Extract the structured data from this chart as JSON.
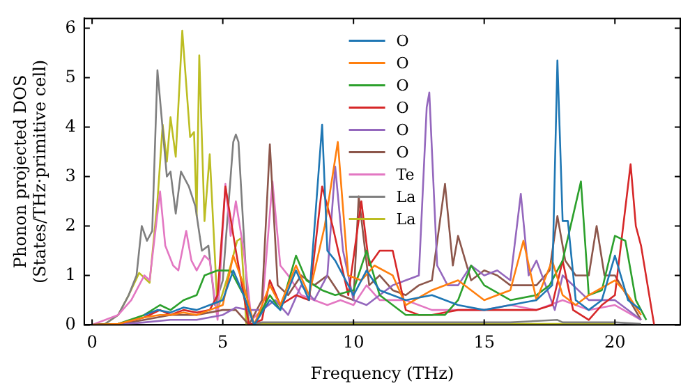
{
  "chart_data": {
    "type": "line",
    "xlabel": "Frequency (THz)",
    "ylabel": "Phonon projected DOS\n(States/THz·primitive cell)",
    "xlim": [
      -0.3,
      22.5
    ],
    "ylim": [
      0,
      6.2
    ],
    "xticks": [
      0,
      5,
      10,
      15,
      20
    ],
    "yticks": [
      0,
      1,
      2,
      3,
      4,
      5,
      6
    ],
    "grid": false,
    "legend": "top center",
    "marker": "none",
    "line_style": "solid",
    "series": [
      {
        "name": "O",
        "color": "#1f77b4",
        "x": [
          2,
          2.5,
          3,
          3.5,
          4,
          4.5,
          5,
          5.4,
          5.8,
          6.2,
          6.8,
          7.2,
          7.8,
          8.3,
          8.8,
          9.0,
          9.3,
          10,
          10.5,
          11,
          12,
          13,
          14,
          15,
          16,
          17,
          17.6,
          17.8,
          18.0,
          18.2,
          18.5,
          19,
          19.5,
          20,
          20.5,
          21
        ],
        "values": [
          0.2,
          0.3,
          0.25,
          0.35,
          0.3,
          0.4,
          0.5,
          1.1,
          0.6,
          0,
          0.5,
          0.3,
          1.1,
          0.5,
          4.05,
          1.5,
          1.3,
          0.6,
          1.1,
          0.7,
          0.5,
          0.6,
          0.4,
          0.3,
          0.4,
          0.5,
          0.8,
          5.35,
          2.1,
          2.1,
          0.5,
          0.3,
          0.5,
          1.4,
          0.5,
          0.3
        ]
      },
      {
        "name": "O",
        "color": "#ff7f0e",
        "x": [
          0,
          1,
          2,
          2.6,
          3,
          3.5,
          4,
          4.5,
          5,
          5.4,
          5.8,
          6.2,
          6.8,
          7.2,
          7.8,
          8.3,
          8.9,
          9.4,
          9.8,
          10.3,
          10.8,
          11.5,
          12,
          13,
          14,
          15,
          15.5,
          16,
          16.5,
          17,
          17.6,
          18,
          18.5,
          19,
          20,
          20.5,
          21
        ],
        "values": [
          0,
          0.02,
          0.15,
          0.2,
          0.2,
          0.25,
          0.2,
          0.3,
          0.4,
          1.4,
          0.8,
          0,
          0.8,
          0.4,
          1.2,
          0.6,
          2.0,
          3.7,
          1.0,
          0.9,
          1.2,
          1.0,
          0.4,
          0.7,
          0.9,
          0.5,
          0.6,
          0.7,
          1.7,
          0.5,
          1.3,
          0.6,
          0.4,
          0.6,
          0.9,
          0.6,
          0.2
        ]
      },
      {
        "name": "O",
        "color": "#2ca02c",
        "x": [
          0,
          1,
          2,
          2.6,
          3,
          3.5,
          4,
          4.3,
          4.8,
          5.3,
          5.8,
          6.2,
          6.8,
          7.2,
          7.8,
          8.2,
          8.8,
          9.3,
          10,
          10.5,
          11,
          12,
          13,
          13.5,
          14,
          14.5,
          15,
          16,
          17,
          17.5,
          18,
          18.7,
          19,
          19.5,
          20,
          20.4,
          20.8,
          21.2
        ],
        "values": [
          0,
          0.02,
          0.2,
          0.4,
          0.3,
          0.5,
          0.6,
          1.0,
          1.1,
          1.1,
          0.6,
          0,
          0.6,
          0.3,
          1.4,
          0.9,
          0.7,
          0.6,
          0.7,
          1.5,
          0.6,
          0.2,
          0.2,
          0.2,
          0.5,
          1.2,
          0.8,
          0.5,
          0.6,
          0.8,
          1.3,
          2.9,
          0.6,
          0.7,
          1.8,
          1.7,
          0.5,
          0.1
        ]
      },
      {
        "name": "O",
        "color": "#d62728",
        "x": [
          0,
          1,
          2,
          2.6,
          3,
          3.5,
          4,
          4.5,
          4.8,
          5.1,
          5.5,
          6,
          6.5,
          6.8,
          7.2,
          7.8,
          8.3,
          8.8,
          9.2,
          9.8,
          10.3,
          10.6,
          11,
          11.5,
          12,
          12.5,
          13,
          14,
          15,
          16,
          17,
          17.6,
          18.0,
          18.4,
          19,
          19.5,
          20,
          20.6,
          20.8,
          21.0,
          21.5
        ],
        "values": [
          0,
          0.02,
          0.15,
          0.3,
          0.2,
          0.3,
          0.25,
          0.3,
          0.6,
          2.8,
          1.5,
          0,
          0.1,
          0.9,
          0.4,
          0.6,
          0.5,
          2.8,
          2.0,
          0.6,
          2.5,
          1.2,
          1.5,
          1.5,
          0.3,
          0.2,
          0.2,
          0.3,
          0.3,
          0.3,
          0.3,
          0.4,
          1.3,
          0.3,
          0.1,
          0.4,
          0.6,
          3.25,
          2.0,
          1.6,
          0
        ]
      },
      {
        "name": "O",
        "color": "#9467bd",
        "x": [
          0,
          1,
          2,
          3,
          4,
          5,
          5.5,
          6,
          6.5,
          7,
          7.5,
          8,
          8.5,
          9,
          9.3,
          9.6,
          10,
          10.5,
          11,
          11.5,
          12,
          12.5,
          12.8,
          12.9,
          13.2,
          13.6,
          14,
          14.5,
          15,
          15.5,
          16,
          16.4,
          16.7,
          17,
          17.7,
          18,
          19,
          20,
          21
        ],
        "values": [
          0,
          0.01,
          0.05,
          0.1,
          0.1,
          0.2,
          0.35,
          0.3,
          0.3,
          0.5,
          0.2,
          0.8,
          0.5,
          1.0,
          3.2,
          1.5,
          0.5,
          0.4,
          0.6,
          0.8,
          0.9,
          1.0,
          4.4,
          4.7,
          1.2,
          0.8,
          0.8,
          1.2,
          1.0,
          1.1,
          0.9,
          2.65,
          1.0,
          1.3,
          0.3,
          1.0,
          0.5,
          0.5,
          0.1
        ]
      },
      {
        "name": "O",
        "color": "#8c564b",
        "x": [
          0,
          1,
          2,
          3,
          4,
          5,
          5.5,
          6,
          6.5,
          6.8,
          7.1,
          7.5,
          8,
          8.5,
          9,
          9.5,
          10,
          10.2,
          10.6,
          11,
          11.5,
          12,
          12.5,
          13,
          13.5,
          13.8,
          14,
          14.5,
          15,
          15.5,
          16,
          17,
          17.5,
          17.8,
          18.1,
          18.5,
          19,
          19.3,
          19.6,
          20,
          21
        ],
        "values": [
          0,
          0.01,
          0.1,
          0.2,
          0.2,
          0.3,
          0.3,
          0,
          0.5,
          3.65,
          0.8,
          0.6,
          1.0,
          0.8,
          1.0,
          0.6,
          0.5,
          2.6,
          0.8,
          1.0,
          0.7,
          0.6,
          0.8,
          0.9,
          2.85,
          1.2,
          1.8,
          0.9,
          1.1,
          1.0,
          0.8,
          0.8,
          1.1,
          2.2,
          1.3,
          1.0,
          1.0,
          2.0,
          1.0,
          1.0,
          0.1
        ]
      },
      {
        "name": "Te",
        "color": "#e377c2",
        "x": [
          0,
          1,
          1.5,
          2.0,
          2.2,
          2.6,
          2.8,
          3.1,
          3.3,
          3.6,
          3.8,
          4.0,
          4.3,
          4.5,
          4.8,
          5.1,
          5.3,
          5.5,
          5.8,
          6.1,
          6.5,
          6.9,
          7.2,
          7.5,
          8,
          8.5,
          9,
          9.5,
          10,
          10.5,
          11,
          12,
          13,
          14,
          15,
          16,
          17,
          18,
          19,
          20,
          21
        ],
        "values": [
          0,
          0.2,
          0.5,
          1.0,
          0.9,
          2.7,
          1.6,
          1.2,
          1.1,
          1.9,
          1.3,
          1.1,
          1.4,
          1.3,
          0.1,
          2.85,
          1.8,
          2.5,
          1.5,
          0.1,
          0.3,
          2.9,
          1.2,
          1.0,
          0.6,
          0.5,
          0.4,
          0.5,
          0.4,
          0.8,
          0.5,
          0.5,
          0.3,
          0.3,
          0.3,
          0.4,
          0.3,
          0.5,
          0.3,
          0.4,
          0.1
        ]
      },
      {
        "name": "La",
        "color": "#7f7f7f",
        "x": [
          0,
          0.5,
          1,
          1.4,
          1.7,
          1.9,
          2.1,
          2.3,
          2.5,
          2.86,
          3.0,
          3.2,
          3.4,
          3.7,
          3.95,
          4.2,
          4.45,
          4.7,
          5.0,
          5.4,
          5.5,
          5.6,
          6.0,
          6.5,
          7,
          8,
          9,
          10,
          12,
          14,
          16,
          17.8,
          18,
          19,
          20,
          21
        ],
        "values": [
          0,
          0.02,
          0.2,
          0.6,
          1.0,
          2.0,
          1.7,
          1.9,
          5.15,
          3.0,
          3.1,
          2.25,
          3.1,
          2.8,
          2.4,
          1.5,
          1.6,
          0.4,
          0.9,
          3.7,
          3.85,
          3.7,
          0,
          0.05,
          0.05,
          0.05,
          0.05,
          0.05,
          0.05,
          0.05,
          0.05,
          0.1,
          0.05,
          0.05,
          0.05,
          0.02
        ]
      },
      {
        "name": "La",
        "color": "#bcbd22",
        "x": [
          0,
          0.5,
          1,
          1.4,
          1.8,
          2.2,
          2.5,
          2.7,
          2.86,
          3.0,
          3.2,
          3.45,
          3.75,
          3.9,
          4.0,
          4.1,
          4.3,
          4.5,
          4.8,
          5.2,
          5.55,
          5.7,
          5.9,
          6.5,
          8,
          10,
          12,
          14,
          16,
          18,
          20
        ],
        "values": [
          0,
          0.02,
          0.2,
          0.6,
          1.05,
          0.85,
          2.5,
          4.05,
          3.3,
          4.2,
          3.4,
          5.95,
          3.8,
          3.9,
          2.2,
          5.45,
          2.1,
          3.45,
          0.3,
          1.0,
          1.7,
          1.75,
          0,
          0.02,
          0.02,
          0.02,
          0.02,
          0.02,
          0.02,
          0.02,
          0.02
        ]
      }
    ]
  }
}
